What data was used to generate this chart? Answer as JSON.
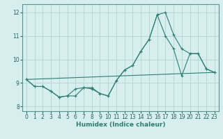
{
  "title": "",
  "xlabel": "Humidex (Indice chaleur)",
  "ylabel": "",
  "bg_color": "#d6efee",
  "grid_color": "#b8d8d6",
  "line_color": "#2e7d6e",
  "xlim": [
    -0.5,
    23.5
  ],
  "ylim": [
    7.8,
    12.35
  ],
  "yticks": [
    8,
    9,
    10,
    11,
    12
  ],
  "xticks": [
    0,
    1,
    2,
    3,
    4,
    5,
    6,
    7,
    8,
    9,
    10,
    11,
    12,
    13,
    14,
    15,
    16,
    17,
    18,
    19,
    20,
    21,
    22,
    23
  ],
  "series": [
    {
      "x": [
        0,
        1,
        2,
        3,
        4,
        5,
        6,
        7,
        8,
        9,
        10,
        11,
        12,
        13,
        14,
        15,
        16,
        17,
        18,
        19,
        20,
        21,
        22,
        23
      ],
      "y": [
        9.15,
        8.85,
        8.85,
        8.65,
        8.4,
        8.45,
        8.75,
        8.8,
        8.75,
        8.55,
        8.45,
        9.1,
        9.55,
        9.75,
        10.35,
        10.85,
        11.9,
        12.0,
        11.05,
        10.45,
        10.25,
        10.25,
        9.6,
        9.45
      ]
    },
    {
      "x": [
        0,
        1,
        2,
        3,
        4,
        5,
        6,
        7,
        8,
        9,
        10,
        11,
        12,
        13,
        14,
        15,
        16,
        17,
        18,
        19,
        20,
        21,
        22,
        23
      ],
      "y": [
        9.15,
        8.85,
        8.85,
        8.65,
        8.4,
        8.45,
        8.45,
        8.8,
        8.8,
        8.55,
        8.45,
        9.1,
        9.55,
        9.75,
        10.35,
        10.85,
        11.9,
        11.0,
        10.45,
        9.3,
        10.25,
        10.25,
        9.6,
        9.45
      ]
    },
    {
      "x": [
        0,
        23
      ],
      "y": [
        9.15,
        9.45
      ]
    }
  ]
}
